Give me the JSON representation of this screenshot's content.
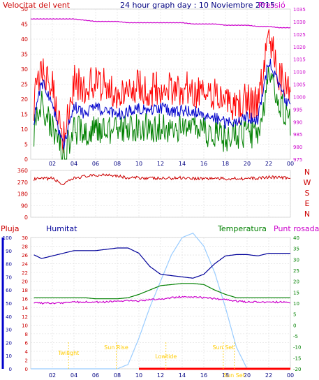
{
  "header": {
    "left": "Velocitat del vent",
    "center": "24 hour graph day : 10 Noviembre 2015",
    "right": "Pressió"
  },
  "lower_header": {
    "pluja": "Pluja",
    "humitat": "Humitat",
    "temperatura": "Temperatura",
    "punt_rosada": "Punt rosada"
  },
  "x_ticks": [
    "02",
    "04",
    "06",
    "08",
    "10",
    "12",
    "14",
    "16",
    "18",
    "20",
    "22",
    "00"
  ],
  "compass": [
    "N",
    "W",
    "S",
    "E",
    "N"
  ],
  "events": {
    "twilight_start": "Twilight",
    "sunrise": "Sun Rise",
    "solar_noon": "Lowtide",
    "sunset": "Sun Set",
    "twilight_end": "Sun Set"
  },
  "colors": {
    "wind_gust": "#ff0000",
    "wind_avg": "#0000cc",
    "wind_low": "#008000",
    "pressure": "#cc00cc",
    "humidity": "#000099",
    "temperature": "#008000",
    "dewpoint": "#cc00cc",
    "solar": "#99ccff",
    "rain": "#ff0000",
    "events": "#ffcc00",
    "axis_left": "#cc0000",
    "axis_right": "#cc00cc"
  },
  "chart_data": [
    {
      "type": "line",
      "title": "24 hour graph day : 10 Noviembre 2015",
      "ylabel_left": "Velocitat del vent",
      "ylabel_right": "Pressió",
      "ylim_left": [
        0,
        50
      ],
      "ylim_right": [
        975,
        1035
      ],
      "y_ticks_left": [
        0,
        5,
        10,
        15,
        20,
        25,
        30,
        35,
        40,
        45,
        50
      ],
      "y_ticks_right": [
        975,
        980,
        985,
        990,
        995,
        1000,
        1005,
        1010,
        1015,
        1020,
        1025,
        1030,
        1035
      ],
      "x_hours": [
        0,
        1,
        2,
        3,
        4,
        5,
        6,
        7,
        8,
        9,
        10,
        11,
        12,
        13,
        14,
        15,
        16,
        17,
        18,
        19,
        20,
        21,
        22,
        23,
        24
      ],
      "series": [
        {
          "role": "gust",
          "values": [
            14,
            30,
            25,
            8,
            26,
            24,
            26,
            24,
            22,
            24,
            25,
            23,
            24,
            23,
            24,
            23,
            22,
            21,
            18,
            17,
            20,
            18,
            40,
            28,
            22
          ]
        },
        {
          "role": "average",
          "values": [
            8,
            26,
            18,
            4,
            18,
            15,
            17,
            16,
            15,
            16,
            17,
            16,
            17,
            16,
            16,
            16,
            15,
            14,
            12,
            12,
            14,
            13,
            33,
            24,
            17
          ]
        },
        {
          "role": "low",
          "values": [
            5,
            19,
            10,
            2,
            10,
            9,
            10,
            10,
            9,
            10,
            11,
            10,
            11,
            10,
            10,
            10,
            9,
            9,
            7,
            8,
            9,
            8,
            27,
            19,
            12
          ]
        },
        {
          "role": "pressure",
          "values": [
            1031,
            1031,
            1031,
            1031,
            1031,
            1030.5,
            1030,
            1030,
            1030,
            1029.5,
            1029.5,
            1029.5,
            1029.5,
            1029.5,
            1029.5,
            1029,
            1029,
            1029,
            1028.5,
            1028.5,
            1028.5,
            1028,
            1028,
            1027.5,
            1027.5
          ]
        }
      ]
    },
    {
      "type": "line",
      "title": "",
      "ylim": [
        0,
        360
      ],
      "y_ticks": [
        0,
        90,
        180,
        270,
        360
      ],
      "x_hours": [
        0,
        1,
        2,
        3,
        4,
        5,
        6,
        7,
        8,
        9,
        10,
        11,
        12,
        13,
        14,
        15,
        16,
        17,
        18,
        19,
        20,
        21,
        22,
        23,
        24
      ],
      "series": [
        {
          "role": "wind_direction",
          "values": [
            290,
            295,
            300,
            250,
            300,
            315,
            320,
            330,
            320,
            300,
            305,
            300,
            298,
            300,
            305,
            300,
            298,
            300,
            295,
            300,
            298,
            300,
            310,
            305,
            300
          ]
        }
      ]
    },
    {
      "type": "line",
      "title": "",
      "ylim_left_humidity": [
        0,
        100
      ],
      "y_ticks_left_humidity": [
        0,
        10,
        20,
        30,
        40,
        50,
        60,
        70,
        80,
        90,
        100
      ],
      "ylim_left_rain": [
        0,
        30
      ],
      "y_ticks_left_rain": [
        0,
        2,
        4,
        6,
        8,
        10,
        12,
        14,
        16,
        18,
        20,
        22,
        24,
        26,
        28,
        30
      ],
      "ylim_right": [
        -20,
        40
      ],
      "y_ticks_right": [
        -20,
        -15,
        -10,
        -5,
        0,
        5,
        10,
        15,
        20,
        25,
        30,
        35,
        40
      ],
      "x_hours": [
        0,
        1,
        2,
        3,
        4,
        5,
        6,
        7,
        8,
        9,
        10,
        11,
        12,
        13,
        14,
        15,
        16,
        17,
        18,
        19,
        20,
        21,
        22,
        23,
        24
      ],
      "series": [
        {
          "role": "humitat",
          "values": [
            88,
            84,
            86,
            88,
            90,
            90,
            90,
            91,
            92,
            92,
            88,
            78,
            72,
            71,
            70,
            69,
            72,
            80,
            86,
            87,
            87,
            86,
            88,
            88,
            88
          ]
        },
        {
          "role": "temperatura",
          "values": [
            12.5,
            12.5,
            12.5,
            12.5,
            12.5,
            12.5,
            12,
            12,
            12,
            12.5,
            14,
            16,
            18,
            18.5,
            19,
            19,
            18.5,
            16,
            14,
            12.5,
            12.5,
            12.5,
            12.5,
            12.5,
            12.5
          ]
        },
        {
          "role": "punt_rosada",
          "values": [
            10.5,
            10,
            10,
            10,
            10.5,
            10.5,
            10.5,
            10.5,
            11,
            11,
            11,
            11.5,
            12,
            12.5,
            13,
            13,
            12.5,
            12,
            11.5,
            11,
            10.5,
            10.5,
            10.5,
            10.5,
            10.5
          ]
        },
        {
          "role": "radiacio_solar",
          "values": [
            0,
            0,
            0,
            0,
            0,
            0,
            0,
            0,
            0,
            1,
            7,
            14,
            20,
            26,
            30,
            31,
            28,
            22,
            14,
            5,
            0,
            0,
            0,
            0,
            0
          ]
        },
        {
          "role": "pluja",
          "values": [
            0,
            0,
            0,
            0,
            0,
            0,
            0,
            0,
            0,
            0,
            0,
            0,
            0,
            0,
            0,
            0,
            0,
            0,
            0,
            0,
            0,
            0,
            0,
            0,
            0
          ]
        }
      ],
      "event_hours": {
        "twilight_start": 3.5,
        "sunrise": 7.9,
        "solar_noon": 12.5,
        "sunset": 17.8,
        "twilight_end": 18.8
      }
    }
  ]
}
